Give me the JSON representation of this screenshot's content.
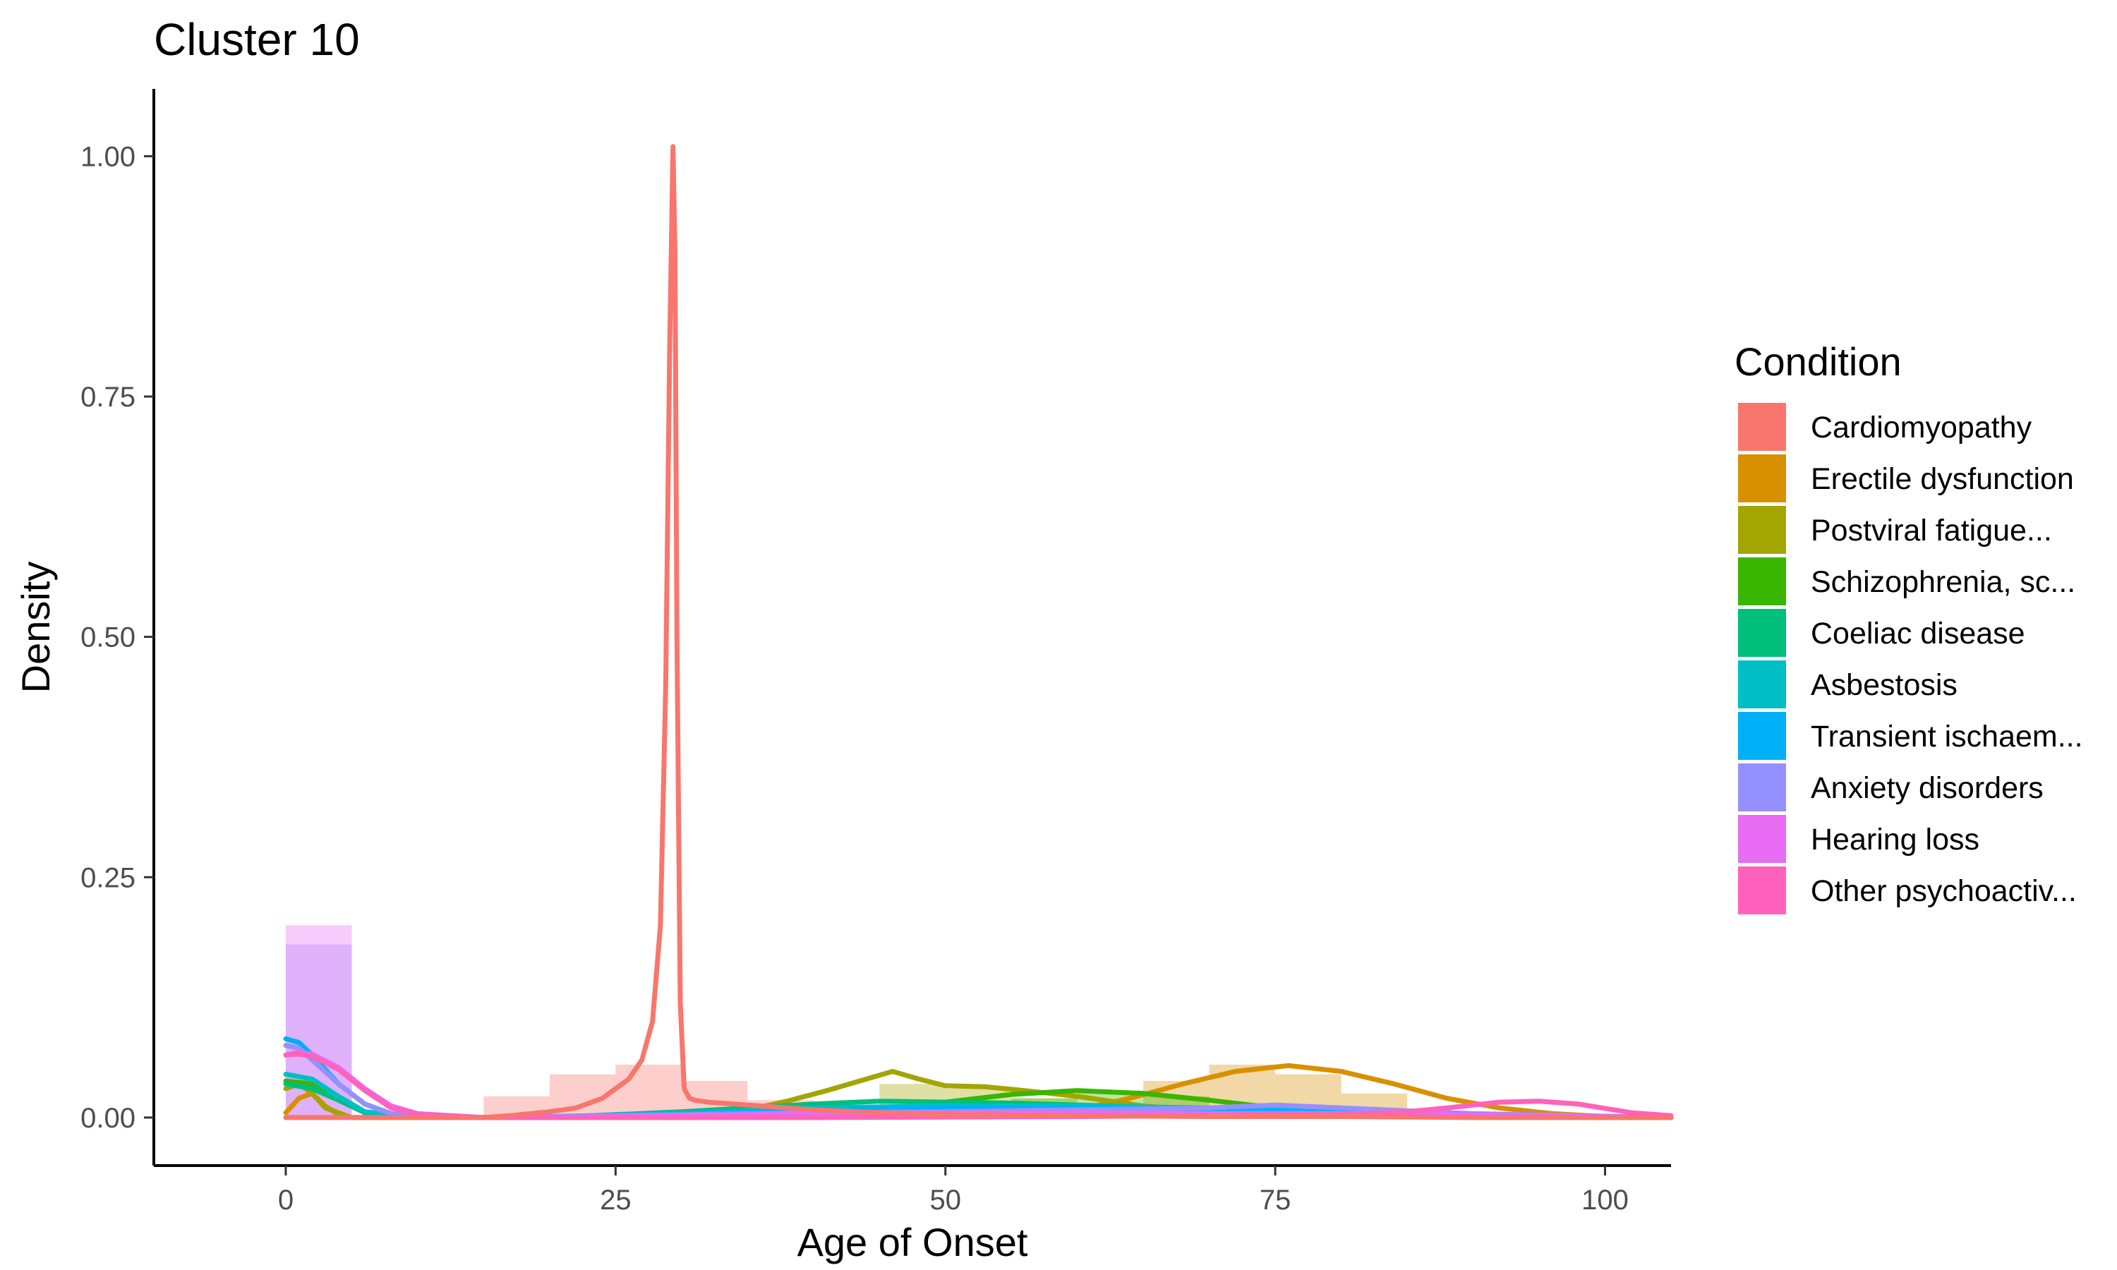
{
  "chart_data": {
    "type": "histogram-density",
    "title": "Cluster 10",
    "xlabel": "Age of Onset",
    "ylabel": "Density",
    "xlim": [
      -10,
      105
    ],
    "ylim": [
      -0.05,
      1.07
    ],
    "xticks": [
      0,
      25,
      50,
      75,
      100
    ],
    "yticks": [
      0.0,
      0.25,
      0.5,
      0.75,
      1.0
    ],
    "xtick_labels": [
      "0",
      "25",
      "50",
      "75",
      "100"
    ],
    "ytick_labels": [
      "0.00",
      "0.25",
      "0.50",
      "0.75",
      "1.00"
    ],
    "grid": false,
    "legend": {
      "title": "Condition",
      "position": "right",
      "entries": [
        {
          "label": "Cardiomyopathy",
          "color": "#F8766D"
        },
        {
          "label": "Erectile dysfunction",
          "color": "#D89000"
        },
        {
          "label": "Postviral fatigue...",
          "color": "#A3A500"
        },
        {
          "label": "Schizophrenia, sc...",
          "color": "#39B600"
        },
        {
          "label": "Coeliac disease",
          "color": "#00BF7D"
        },
        {
          "label": "Asbestosis",
          "color": "#00BFC4"
        },
        {
          "label": "Transient ischaem...",
          "color": "#00B0F6"
        },
        {
          "label": "Anxiety disorders",
          "color": "#9590FF"
        },
        {
          "label": "Hearing loss",
          "color": "#E76BF3"
        },
        {
          "label": "Other psychoactiv...",
          "color": "#FF62BC"
        }
      ]
    },
    "bin_width": 5,
    "histograms": [
      {
        "name": "Cardiomyopathy",
        "color": "#F8766D",
        "bins": [
          [
            15,
            0.022
          ],
          [
            20,
            0.045
          ],
          [
            25,
            0.055
          ],
          [
            30,
            0.038
          ],
          [
            35,
            0.018
          ]
        ]
      },
      {
        "name": "Erectile dysfunction",
        "color": "#D89000",
        "bins": [
          [
            65,
            0.038
          ],
          [
            70,
            0.055
          ],
          [
            75,
            0.045
          ],
          [
            80,
            0.025
          ]
        ]
      },
      {
        "name": "Postviral fatigue...",
        "color": "#A3A500",
        "bins": [
          [
            45,
            0.035
          ],
          [
            50,
            0.03
          ],
          [
            55,
            0.02
          ]
        ]
      },
      {
        "name": "Schizophrenia, sc...",
        "color": "#39B600",
        "bins": [
          [
            55,
            0.02
          ],
          [
            60,
            0.028
          ],
          [
            65,
            0.022
          ]
        ]
      },
      {
        "name": "Anxiety disorders",
        "color": "#9590FF",
        "bins": [
          [
            0,
            0.18
          ]
        ]
      },
      {
        "name": "Hearing loss",
        "color": "#E76BF3",
        "bins": [
          [
            0,
            0.2
          ]
        ]
      }
    ],
    "series": [
      {
        "name": "Cardiomyopathy",
        "color": "#F8766D",
        "x": [
          0,
          5,
          10,
          15,
          17,
          20,
          22,
          24,
          25,
          26,
          27,
          27.8,
          28.4,
          28.8,
          29.1,
          29.35,
          29.5,
          29.65,
          29.9,
          30.2,
          30.6,
          31,
          32,
          34,
          36,
          40,
          45,
          50,
          60,
          70,
          80,
          90,
          100,
          105
        ],
        "y": [
          0.0,
          0.0,
          0.0,
          0.0,
          0.002,
          0.006,
          0.01,
          0.02,
          0.03,
          0.04,
          0.06,
          0.1,
          0.2,
          0.45,
          0.8,
          1.01,
          0.9,
          0.5,
          0.12,
          0.03,
          0.02,
          0.018,
          0.016,
          0.014,
          0.012,
          0.008,
          0.005,
          0.003,
          0.002,
          0.001,
          0.001,
          0.0,
          0.0,
          0.0
        ]
      },
      {
        "name": "Erectile dysfunction",
        "color": "#D89000",
        "x": [
          0,
          1,
          2,
          3,
          4,
          5,
          10,
          20,
          40,
          55,
          60,
          64,
          68,
          72,
          76,
          80,
          84,
          88,
          92,
          96,
          100,
          105
        ],
        "y": [
          0.005,
          0.02,
          0.025,
          0.012,
          0.003,
          0.0,
          0.0,
          0.0,
          0.0,
          0.002,
          0.008,
          0.02,
          0.035,
          0.048,
          0.054,
          0.048,
          0.035,
          0.02,
          0.01,
          0.004,
          0.001,
          0.0
        ]
      },
      {
        "name": "Postviral fatigue...",
        "color": "#A3A500",
        "x": [
          0,
          1,
          2,
          3,
          5,
          10,
          20,
          30,
          35,
          38,
          41,
          44,
          46,
          48,
          50,
          53,
          56,
          60,
          65,
          70,
          80,
          90,
          105
        ],
        "y": [
          0.03,
          0.035,
          0.025,
          0.01,
          0.0,
          0.0,
          0.0,
          0.002,
          0.008,
          0.017,
          0.028,
          0.04,
          0.048,
          0.04,
          0.033,
          0.032,
          0.028,
          0.022,
          0.012,
          0.006,
          0.002,
          0.0,
          0.0
        ]
      },
      {
        "name": "Schizophrenia, sc...",
        "color": "#39B600",
        "x": [
          0,
          2,
          4,
          6,
          10,
          20,
          35,
          45,
          50,
          55,
          60,
          65,
          70,
          75,
          80,
          85,
          90,
          100,
          105
        ],
        "y": [
          0.038,
          0.035,
          0.02,
          0.006,
          0.0,
          0.0,
          0.002,
          0.008,
          0.016,
          0.024,
          0.028,
          0.025,
          0.018,
          0.01,
          0.006,
          0.004,
          0.002,
          0.0,
          0.0
        ]
      },
      {
        "name": "Coeliac disease",
        "color": "#00BF7D",
        "x": [
          0,
          2,
          4,
          6,
          10,
          20,
          30,
          40,
          45,
          50,
          55,
          60,
          65,
          70,
          80,
          90,
          105
        ],
        "y": [
          0.035,
          0.03,
          0.018,
          0.005,
          0.0,
          0.0,
          0.006,
          0.014,
          0.017,
          0.016,
          0.015,
          0.013,
          0.011,
          0.008,
          0.005,
          0.002,
          0.0
        ]
      },
      {
        "name": "Asbestosis",
        "color": "#00BFC4",
        "x": [
          0,
          2,
          4,
          6,
          10,
          20,
          30,
          40,
          50,
          60,
          70,
          80,
          90,
          105
        ],
        "y": [
          0.045,
          0.04,
          0.022,
          0.006,
          0.0,
          0.0,
          0.004,
          0.01,
          0.012,
          0.012,
          0.01,
          0.006,
          0.002,
          0.0
        ]
      },
      {
        "name": "Transient ischaem...",
        "color": "#00B0F6",
        "x": [
          0,
          1,
          2,
          4,
          6,
          8,
          10,
          15,
          20,
          30,
          40,
          50,
          60,
          70,
          80,
          90,
          105
        ],
        "y": [
          0.082,
          0.078,
          0.065,
          0.035,
          0.014,
          0.004,
          0.0,
          0.0,
          0.001,
          0.004,
          0.008,
          0.01,
          0.01,
          0.009,
          0.006,
          0.003,
          0.0
        ]
      },
      {
        "name": "Anxiety disorders",
        "color": "#9590FF",
        "x": [
          0,
          1,
          2,
          4,
          6,
          8,
          10,
          15,
          20,
          30,
          40,
          50,
          60,
          70,
          75,
          80,
          90,
          105
        ],
        "y": [
          0.075,
          0.072,
          0.06,
          0.035,
          0.014,
          0.004,
          0.0,
          0.0,
          0.001,
          0.003,
          0.005,
          0.006,
          0.008,
          0.01,
          0.013,
          0.01,
          0.004,
          0.0
        ]
      },
      {
        "name": "Hearing loss",
        "color": "#E76BF3",
        "x": [
          0,
          1,
          2,
          4,
          6,
          8,
          10,
          15,
          20,
          30,
          40,
          50,
          60,
          70,
          80,
          90,
          105
        ],
        "y": [
          0.065,
          0.068,
          0.066,
          0.052,
          0.03,
          0.012,
          0.004,
          0.0,
          0.0,
          0.002,
          0.004,
          0.005,
          0.005,
          0.004,
          0.004,
          0.003,
          0.0
        ]
      },
      {
        "name": "Other psychoactiv...",
        "color": "#FF62BC",
        "x": [
          0,
          1,
          2,
          4,
          6,
          8,
          10,
          15,
          20,
          40,
          60,
          70,
          80,
          85,
          88,
          92,
          95,
          98,
          102,
          105
        ],
        "y": [
          0.065,
          0.066,
          0.064,
          0.05,
          0.028,
          0.01,
          0.003,
          0.0,
          0.0,
          0.0,
          0.001,
          0.002,
          0.003,
          0.006,
          0.01,
          0.016,
          0.017,
          0.014,
          0.005,
          0.002
        ]
      }
    ]
  }
}
